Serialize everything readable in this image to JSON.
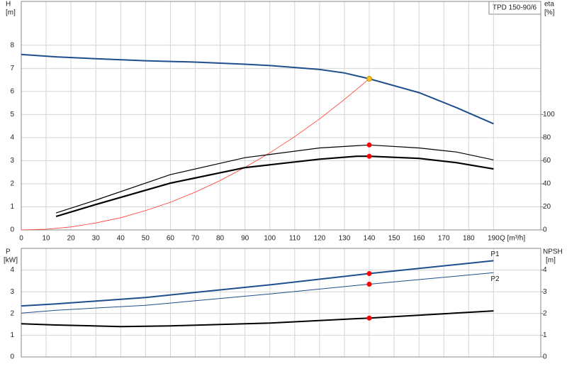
{
  "chart_data": [
    {
      "type": "line",
      "title": "TPD 150-90/6",
      "x_label": "Q [m³/h]",
      "y_label": "H",
      "y_unit": "[m]",
      "y2_label": "eta",
      "y2_unit": "[%]",
      "xlim": [
        0,
        209
      ],
      "xticks": [
        0,
        10,
        20,
        30,
        40,
        50,
        60,
        70,
        80,
        90,
        100,
        110,
        120,
        130,
        140,
        150,
        160,
        170,
        180,
        190
      ],
      "ylim": [
        0,
        9.9
      ],
      "yticks": [
        0,
        1,
        2,
        3,
        4,
        5,
        6,
        7,
        8
      ],
      "y2lim": [
        0,
        198
      ],
      "y2ticks": [
        0,
        20,
        40,
        60,
        80,
        100
      ],
      "grid": true,
      "series": [
        {
          "color": "#1f4e8c",
          "width": 2,
          "x": [
            0,
            14,
            30,
            50,
            70,
            90,
            100,
            120,
            130,
            140,
            160,
            175,
            190
          ],
          "values": [
            7.6,
            7.5,
            7.42,
            7.33,
            7.27,
            7.18,
            7.12,
            6.95,
            6.8,
            6.55,
            5.95,
            5.3,
            4.6
          ]
        },
        {
          "color": "#ff3b30",
          "width": 0.8,
          "x": [
            0,
            10,
            20,
            30,
            40,
            50,
            60,
            70,
            80,
            90,
            100,
            110,
            120,
            130,
            140
          ],
          "values": [
            0,
            0.03,
            0.13,
            0.3,
            0.53,
            0.84,
            1.2,
            1.64,
            2.14,
            2.71,
            3.34,
            4.04,
            4.81,
            5.65,
            6.55
          ]
        },
        {
          "color": "#000000",
          "width": 1.2,
          "axis": "y2",
          "x": [
            14,
            30,
            60,
            90,
            120,
            140,
            160,
            175,
            190
          ],
          "values": [
            14.7,
            25.8,
            47.9,
            62.6,
            71,
            73.6,
            71,
            67.5,
            60.7
          ]
        },
        {
          "color": "#000000",
          "width": 2.2,
          "axis": "y2",
          "x": [
            14,
            30,
            60,
            90,
            120,
            135,
            140,
            160,
            175,
            190
          ],
          "values": [
            11.7,
            22,
            40.5,
            54,
            61.3,
            63.8,
            63.8,
            62,
            58.3,
            52.8
          ]
        },
        {
          "color": "#f5c518",
          "marker": true,
          "x": [
            140
          ],
          "values": [
            6.55
          ]
        },
        {
          "color": "#ff0000",
          "marker": true,
          "axis": "y2",
          "x": [
            140
          ],
          "values": [
            73.6
          ]
        },
        {
          "color": "#ff0000",
          "marker": true,
          "axis": "y2",
          "x": [
            140
          ],
          "values": [
            63.8
          ]
        }
      ]
    },
    {
      "type": "line",
      "y_label": "P",
      "y_unit": "[kW]",
      "y2_label": "NPSH",
      "y2_unit": "[m]",
      "xlim": [
        0,
        209
      ],
      "ylim": [
        0,
        5
      ],
      "yticks": [
        0,
        1,
        2,
        3,
        4
      ],
      "y2lim": [
        0,
        5
      ],
      "y2ticks": [
        0,
        1,
        2,
        3,
        4
      ],
      "grid": true,
      "series": [
        {
          "name": "P1",
          "color": "#1f4e8c",
          "width": 2,
          "x": [
            0,
            14,
            50,
            100,
            140,
            190
          ],
          "values": [
            2.35,
            2.44,
            2.74,
            3.32,
            3.84,
            4.43
          ]
        },
        {
          "name": "P2",
          "color": "#1f4e8c",
          "width": 1,
          "x": [
            0,
            14,
            50,
            100,
            140,
            190
          ],
          "values": [
            2.02,
            2.15,
            2.38,
            2.9,
            3.35,
            3.88
          ]
        },
        {
          "color": "#000000",
          "width": 2,
          "axis": "y2",
          "x": [
            0,
            14,
            40,
            60,
            100,
            140,
            190
          ],
          "values": [
            1.53,
            1.47,
            1.4,
            1.43,
            1.56,
            1.79,
            2.12
          ]
        },
        {
          "color": "#ff0000",
          "marker": true,
          "x": [
            140
          ],
          "values": [
            3.84
          ]
        },
        {
          "color": "#ff0000",
          "marker": true,
          "x": [
            140
          ],
          "values": [
            3.35
          ]
        },
        {
          "color": "#ff0000",
          "marker": true,
          "axis": "y2",
          "x": [
            140
          ],
          "values": [
            1.79
          ]
        }
      ]
    }
  ]
}
